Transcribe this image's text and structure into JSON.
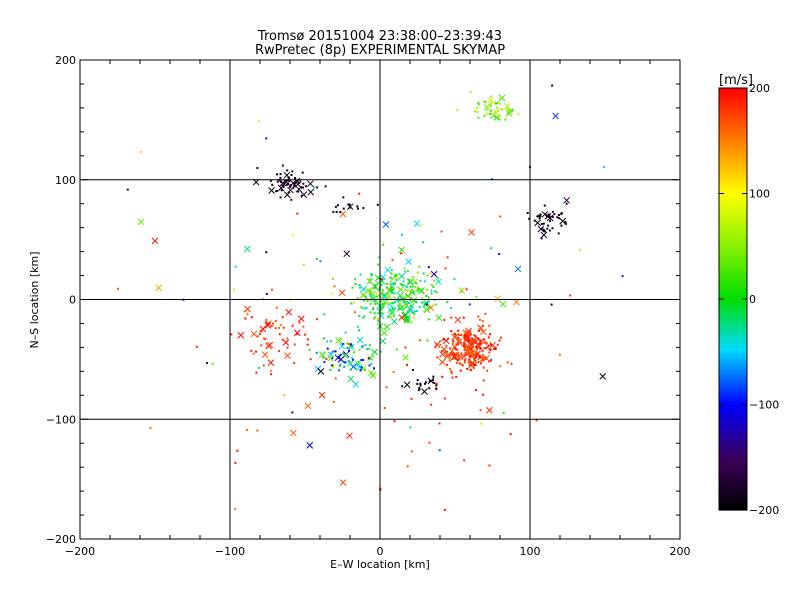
{
  "chart_data": {
    "type": "scatter",
    "title": "Tromsø 20151004 23:38:00–23:39:43",
    "subtitle": "RwPretec (8p) EXPERIMENTAL SKYMAP",
    "xlabel": "E–W location [km]",
    "ylabel": "N–S location [km]",
    "xlim": [
      -200,
      200
    ],
    "ylim": [
      -200,
      200
    ],
    "xticks": [
      "−200",
      "−100",
      "0",
      "100",
      "200"
    ],
    "yticks": [
      "−200",
      "−100",
      "0",
      "100",
      "200"
    ],
    "grid": true,
    "markers": [
      "dot",
      "x"
    ],
    "colorbar": {
      "label": "[m/s]",
      "range": [
        -200,
        200
      ],
      "ticks": [
        "−200",
        "−100",
        "0",
        "100",
        "200"
      ],
      "colormap": "black-purple-blue-cyan-green-yellow-red"
    },
    "clusters": [
      {
        "name": "center",
        "cx": 10,
        "cy": 2,
        "sx": 14,
        "sy": 12,
        "n": 260,
        "vmin": -50,
        "vmax": 60
      },
      {
        "name": "southeast",
        "cx": 60,
        "cy": -40,
        "sx": 10,
        "sy": 10,
        "n": 230,
        "vmin": 160,
        "vmax": 200
      },
      {
        "name": "northwest-arc",
        "cx": -62,
        "cy": 97,
        "sx": 8,
        "sy": 5,
        "n": 60,
        "vmin": -200,
        "vmax": -170
      },
      {
        "name": "north-patch",
        "cx": 75,
        "cy": 160,
        "sx": 8,
        "sy": 5,
        "n": 45,
        "vmin": 10,
        "vmax": 80
      },
      {
        "name": "east-cluster",
        "cx": 113,
        "cy": 66,
        "sx": 7,
        "sy": 6,
        "n": 45,
        "vmin": -200,
        "vmax": -170
      },
      {
        "name": "south-band",
        "cx": -20,
        "cy": -47,
        "sx": 11,
        "sy": 8,
        "n": 90,
        "vmin": -120,
        "vmax": 60
      },
      {
        "name": "west-red",
        "cx": -70,
        "cy": -28,
        "sx": 12,
        "sy": 14,
        "n": 55,
        "vmin": 150,
        "vmax": 200
      },
      {
        "name": "scatter-red",
        "cx": 0,
        "cy": -60,
        "sx": 60,
        "sy": 60,
        "n": 70,
        "vmin": 150,
        "vmax": 200
      },
      {
        "name": "scatter-mixed",
        "cx": 10,
        "cy": 10,
        "sx": 80,
        "sy": 80,
        "n": 90,
        "vmin": -200,
        "vmax": 200
      },
      {
        "name": "south-black",
        "cx": 30,
        "cy": -70,
        "sx": 6,
        "sy": 5,
        "n": 20,
        "vmin": -200,
        "vmax": -180
      },
      {
        "name": "west-black-line",
        "cx": -15,
        "cy": 78,
        "sx": 8,
        "sy": 3,
        "n": 15,
        "vmin": -200,
        "vmax": -180
      }
    ]
  }
}
